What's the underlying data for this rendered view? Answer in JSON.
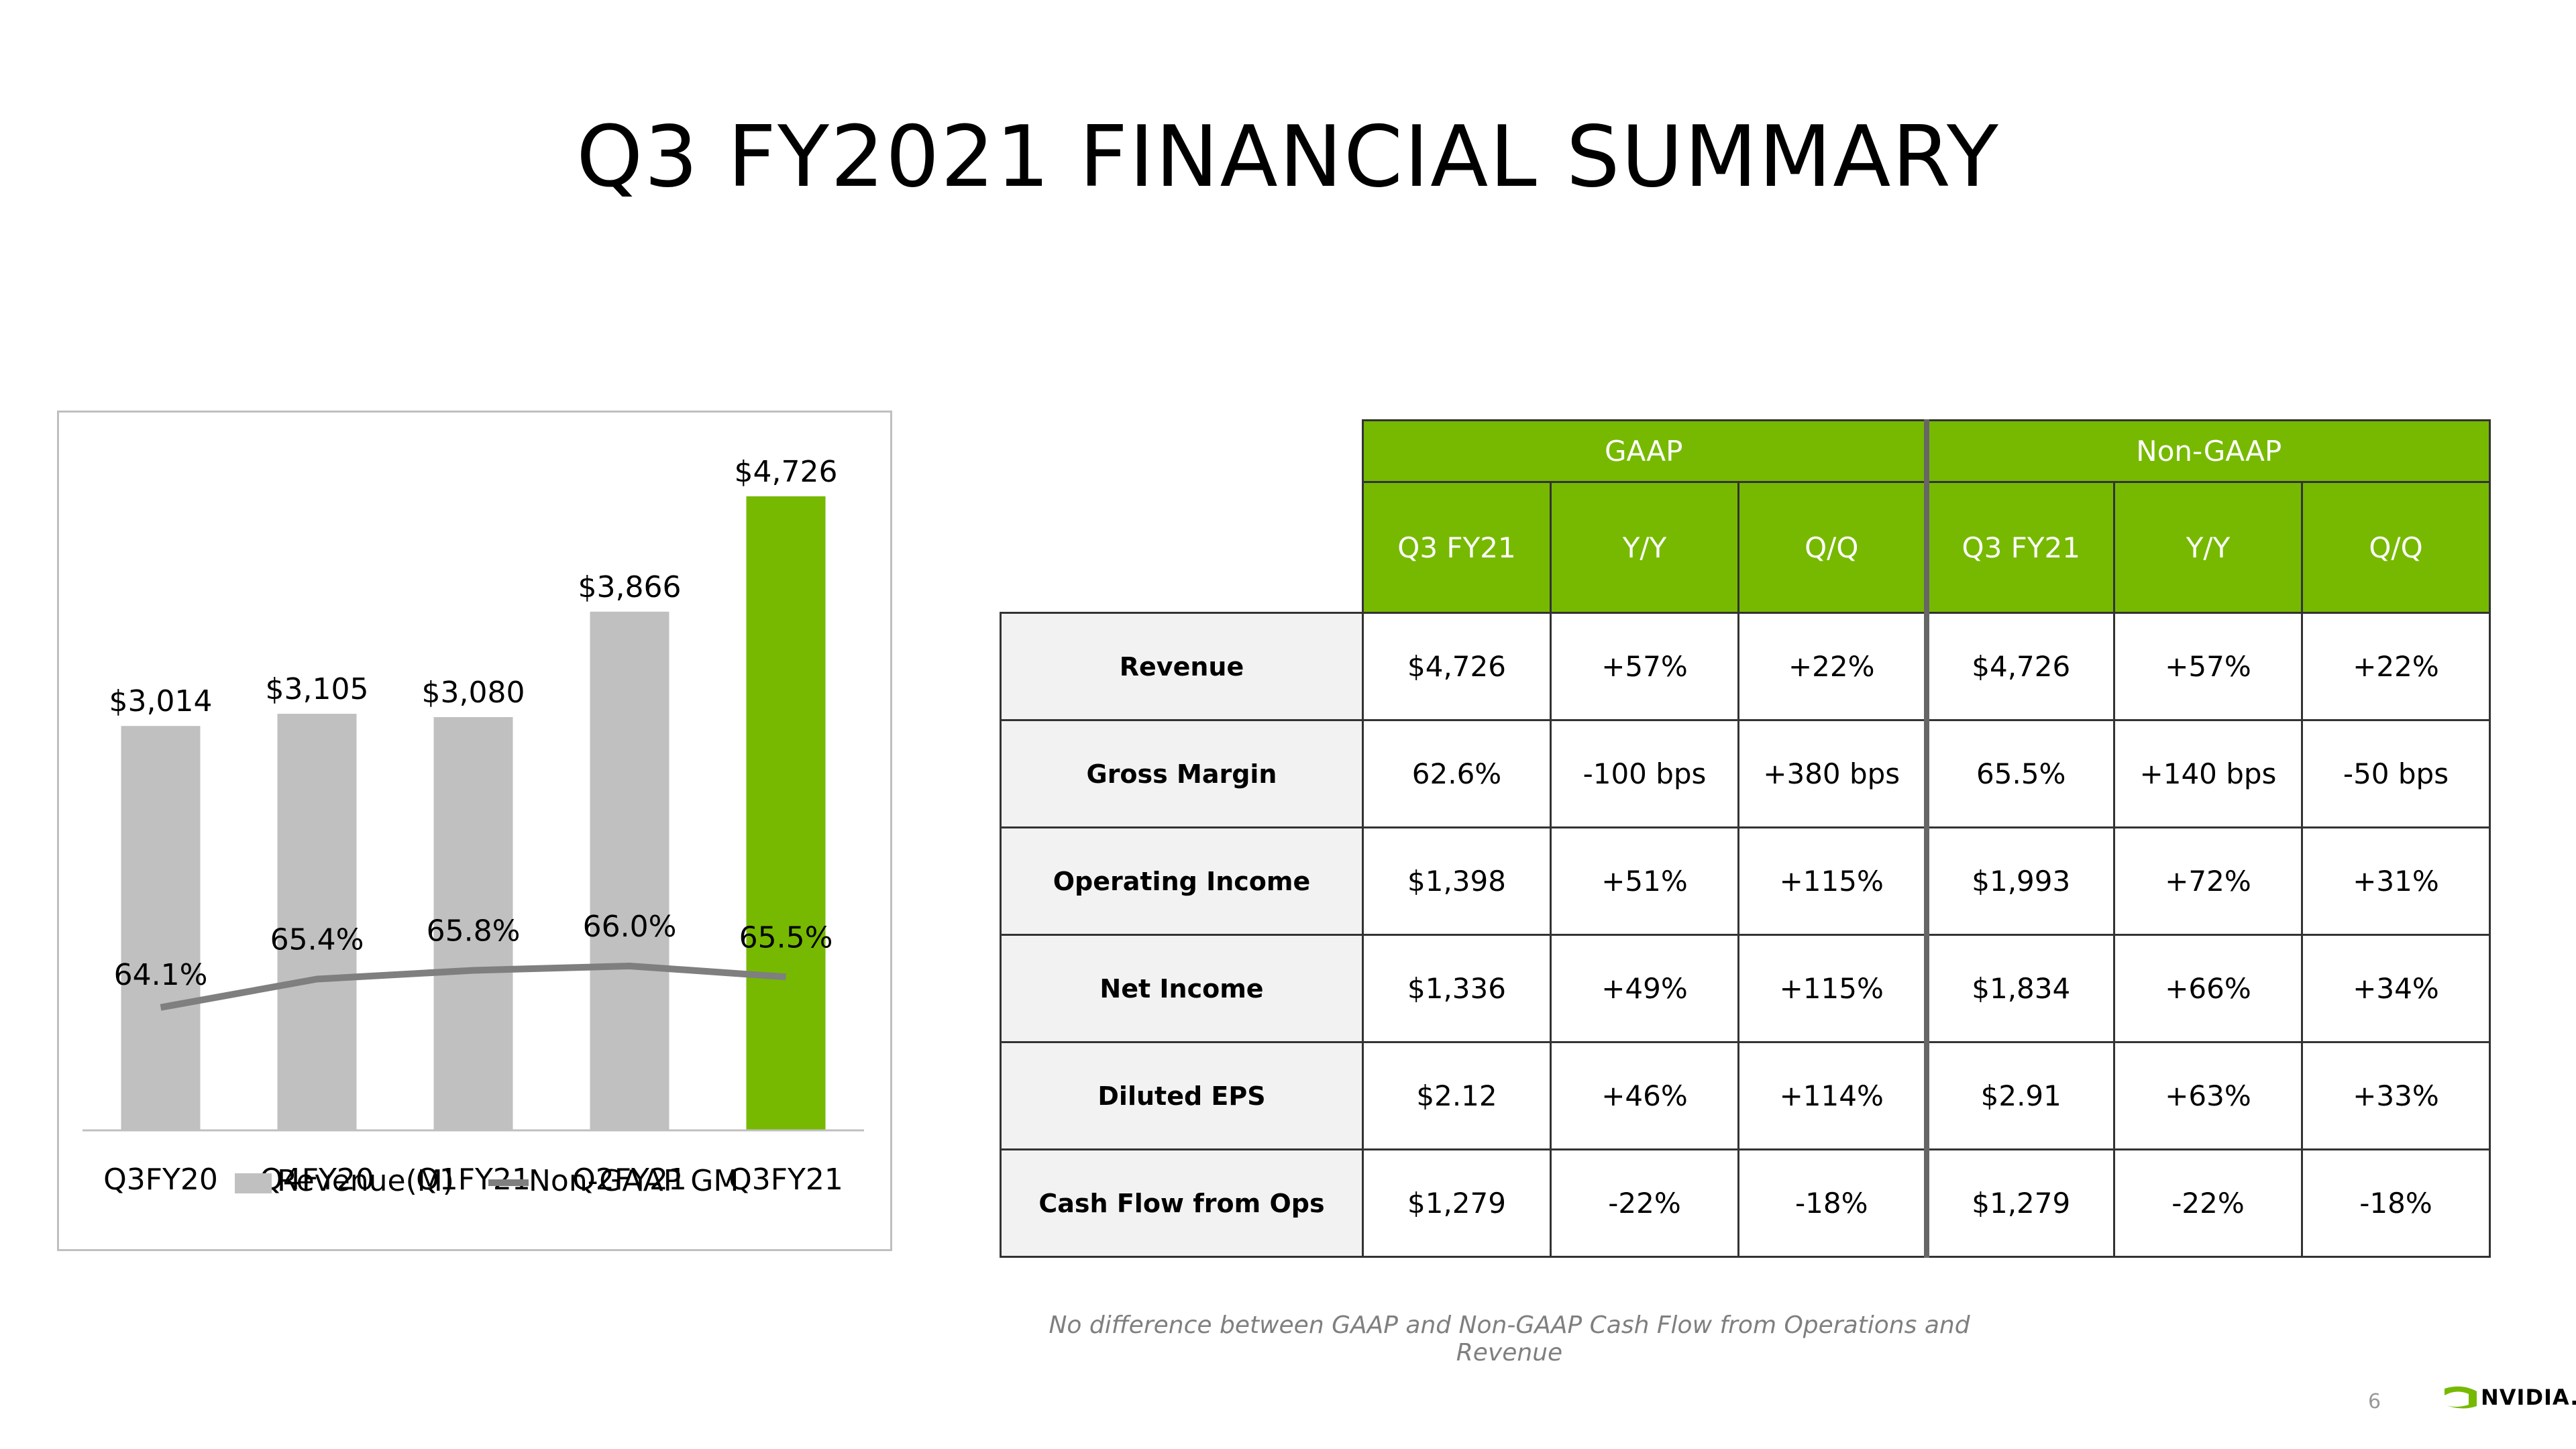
{
  "title": "Q3 FY2021 FINANCIAL SUMMARY",
  "chart_data": {
    "type": "bar",
    "categories": [
      "Q3FY20",
      "Q4FY20",
      "Q1FY21",
      "Q2FY21",
      "Q3FY21"
    ],
    "series": [
      {
        "name": "Revenue(M)",
        "type": "bar",
        "values": [
          3014,
          3105,
          3080,
          3866,
          4726
        ],
        "labels": [
          "$3,014",
          "$3,105",
          "$3,080",
          "$3,866",
          "$4,726"
        ],
        "colors": [
          "#c0c0c0",
          "#c0c0c0",
          "#c0c0c0",
          "#c0c0c0",
          "#76b900"
        ]
      },
      {
        "name": "Non-GAAP GM",
        "type": "line",
        "values": [
          64.1,
          65.4,
          65.8,
          66.0,
          65.5
        ],
        "labels": [
          "64.1%",
          "65.4%",
          "65.8%",
          "66.0%",
          "65.5%"
        ],
        "color": "#7f7f7f"
      }
    ],
    "legend": "bottom",
    "grid": false
  },
  "table": {
    "groups": [
      "GAAP",
      "Non-GAAP"
    ],
    "columns": [
      "Q3 FY21",
      "Y/Y",
      "Q/Q",
      "Q3 FY21",
      "Y/Y",
      "Q/Q"
    ],
    "rows": [
      {
        "label": "Revenue",
        "cells": [
          "$4,726",
          "+57%",
          "+22%",
          "$4,726",
          "+57%",
          "+22%"
        ]
      },
      {
        "label": "Gross Margin",
        "cells": [
          "62.6%",
          "-100 bps",
          "+380 bps",
          "65.5%",
          "+140 bps",
          "-50 bps"
        ]
      },
      {
        "label": "Operating Income",
        "cells": [
          "$1,398",
          "+51%",
          "+115%",
          "$1,993",
          "+72%",
          "+31%"
        ]
      },
      {
        "label": "Net Income",
        "cells": [
          "$1,336",
          "+49%",
          "+115%",
          "$1,834",
          "+66%",
          "+34%"
        ]
      },
      {
        "label": "Diluted EPS",
        "cells": [
          "$2.12",
          "+46%",
          "+114%",
          "$2.91",
          "+63%",
          "+33%"
        ]
      },
      {
        "label": "Cash Flow from Ops",
        "cells": [
          "$1,279",
          "-22%",
          "-18%",
          "$1,279",
          "-22%",
          "-18%"
        ]
      }
    ]
  },
  "footnote": "No difference between GAAP and Non-GAAP Cash Flow from Operations and Revenue",
  "page_number": "6",
  "logo": "NVIDIA."
}
